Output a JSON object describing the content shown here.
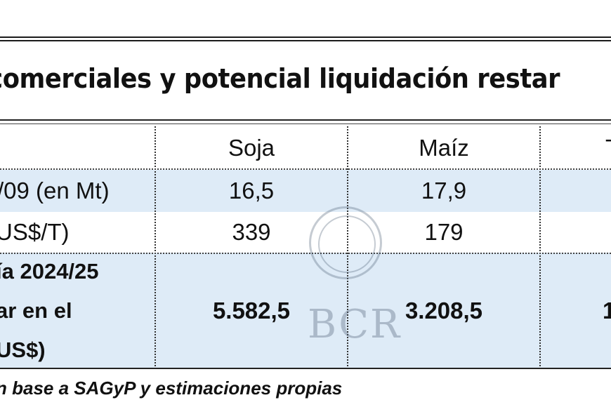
{
  "title": "comerciales y potencial liquidación restar",
  "table": {
    "columns": [
      "Soja",
      "Maíz",
      "T"
    ],
    "rows": [
      {
        "label": "/09 (en Mt)",
        "values": [
          "16,5",
          "17,9",
          ""
        ]
      },
      {
        "label": "US$/T)",
        "values": [
          "339",
          "179",
          ""
        ]
      },
      {
        "label_lines": [
          "ía 2024/25",
          "ar en el",
          "US$)"
        ],
        "values": [
          "5.582,5",
          "3.208,5",
          "1"
        ]
      }
    ]
  },
  "source": "n base a SAGyP y estimaciones propias",
  "watermark": "BCR"
}
